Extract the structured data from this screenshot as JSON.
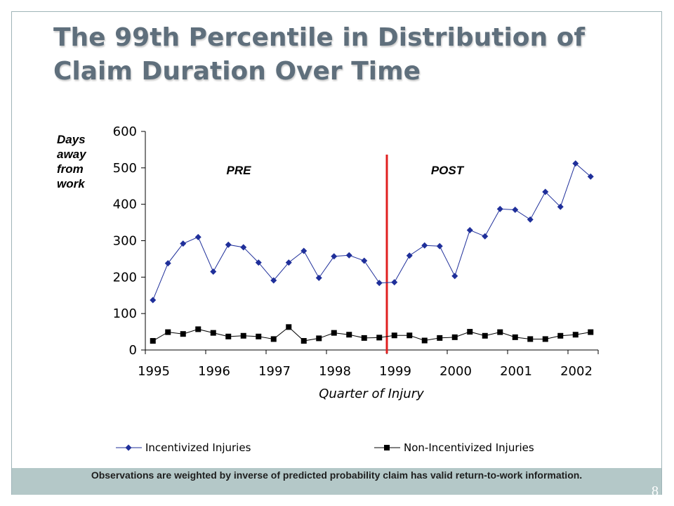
{
  "slide": {
    "title": "The 99th Percentile in Distribution of Claim Duration Over Time",
    "footnote": "Observations are weighted by inverse of predicted probability claim has valid return-to-work information.",
    "page_number": "8"
  },
  "chart_data": {
    "type": "line",
    "title": "The 99th Percentile in Distribution of Claim Duration Over Time",
    "xlabel": "Quarter of Injury",
    "ylabel": "Days away from work",
    "ylim": [
      0,
      600
    ],
    "yticks": [
      0,
      100,
      200,
      300,
      400,
      500,
      600
    ],
    "x_tick_labels": [
      "1995",
      "1996",
      "1997",
      "1998",
      "1999",
      "2000",
      "2001",
      "2002"
    ],
    "x_quarters": [
      "1995Q1",
      "1995Q2",
      "1995Q3",
      "1995Q4",
      "1996Q1",
      "1996Q2",
      "1996Q3",
      "1996Q4",
      "1997Q1",
      "1997Q2",
      "1997Q3",
      "1997Q4",
      "1998Q1",
      "1998Q2",
      "1998Q3",
      "1998Q4",
      "1999Q1",
      "1999Q2",
      "1999Q3",
      "1999Q4",
      "2000Q1",
      "2000Q2",
      "2000Q3",
      "2000Q4",
      "2001Q1",
      "2001Q2",
      "2001Q3",
      "2001Q4",
      "2002Q1",
      "2002Q2"
    ],
    "series": [
      {
        "name": "Incentivized Injuries",
        "marker": "diamond",
        "color": "#1f2f9a",
        "values": [
          137,
          238,
          292,
          310,
          215,
          289,
          282,
          240,
          191,
          240,
          272,
          198,
          257,
          260,
          245,
          184,
          186,
          259,
          287,
          285,
          203,
          329,
          312,
          387,
          385,
          358,
          434,
          393,
          512,
          476
        ]
      },
      {
        "name": "Non-Incentivized Injuries",
        "marker": "square",
        "color": "#000000",
        "values": [
          25,
          49,
          44,
          57,
          47,
          37,
          39,
          37,
          30,
          63,
          25,
          32,
          47,
          42,
          33,
          34,
          40,
          40,
          26,
          33,
          35,
          50,
          39,
          49,
          35,
          30,
          30,
          39,
          42,
          49
        ]
      }
    ],
    "annotations": {
      "pre_label": "PRE",
      "post_label": "POST",
      "divider_at": "1999Q1",
      "divider_color": "#e02020"
    },
    "grid": false,
    "legend_position": "bottom"
  }
}
